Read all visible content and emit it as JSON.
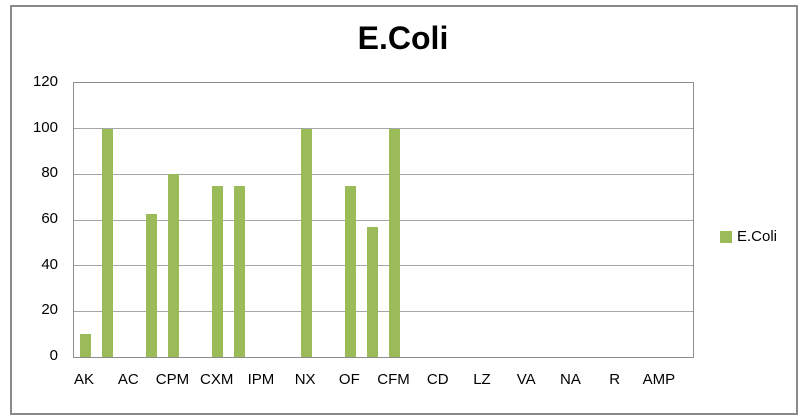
{
  "chart_data": {
    "type": "bar",
    "title": "E.Coli",
    "legend": {
      "label": "E.Coli",
      "position": "right",
      "swatch_color": "#9bbb59"
    },
    "ylim": [
      0,
      120
    ],
    "yticks": [
      0,
      20,
      40,
      60,
      80,
      100,
      120
    ],
    "grid": true,
    "x_axis_labels": [
      "AK",
      "AC",
      "CPM",
      "CXM",
      "IPM",
      "NX",
      "OF",
      "CFM",
      "CD",
      "LZ",
      "VA",
      "NA",
      "R",
      "AMP"
    ],
    "slot_count": 28,
    "label_slot_interval": 2,
    "bars": [
      {
        "slot": 0,
        "value": 10
      },
      {
        "slot": 1,
        "value": 100
      },
      {
        "slot": 3,
        "value": 62.5
      },
      {
        "slot": 4,
        "value": 80
      },
      {
        "slot": 6,
        "value": 75
      },
      {
        "slot": 7,
        "value": 75
      },
      {
        "slot": 10,
        "value": 100
      },
      {
        "slot": 12,
        "value": 75
      },
      {
        "slot": 13,
        "value": 57
      },
      {
        "slot": 14,
        "value": 100
      }
    ],
    "colors": {
      "bar": "#9bbb59",
      "gridline": "#a6a6a6",
      "axis": "#8c8c8c",
      "chart_border": "#898989",
      "text": "#000000"
    }
  }
}
